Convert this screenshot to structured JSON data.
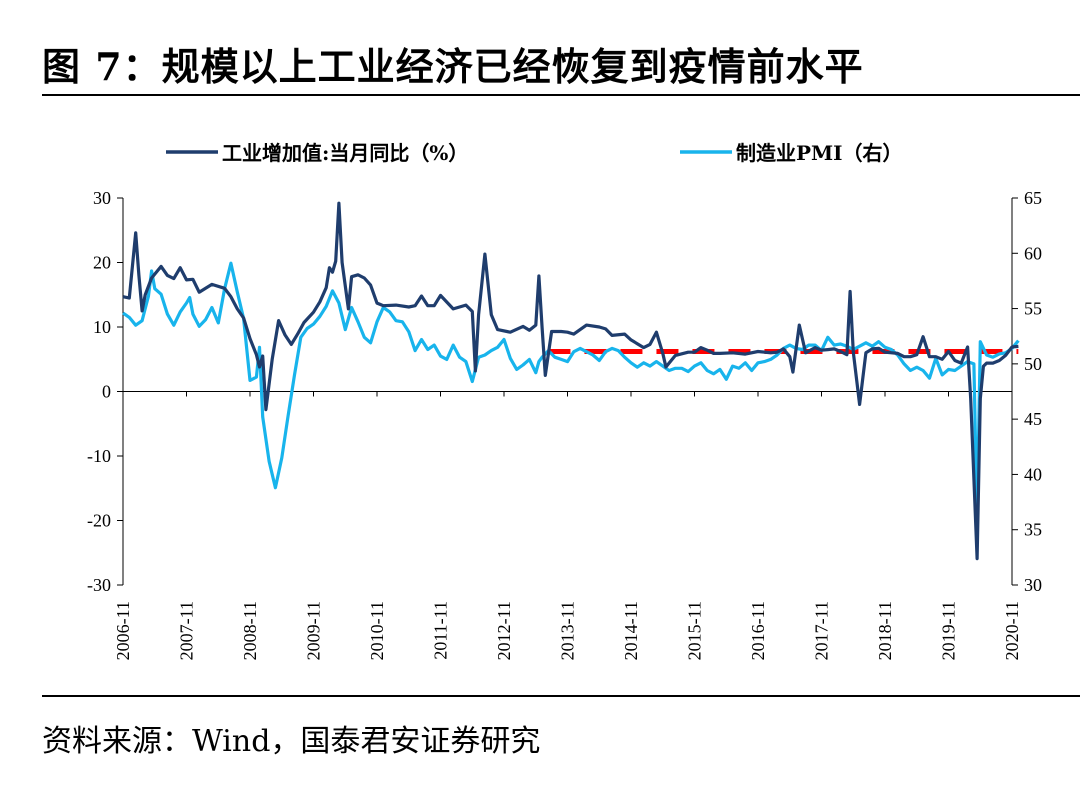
{
  "figure": {
    "title": "图 7：规模以上工业经济已经恢复到疫情前水平",
    "source": "资料来源：Wind，国泰君安证券研究"
  },
  "chart_data": {
    "type": "line",
    "x": [
      "2006-11",
      "2007-11",
      "2008-11",
      "2009-11",
      "2010-11",
      "2011-11",
      "2012-11",
      "2013-11",
      "2014-11",
      "2015-11",
      "2016-11",
      "2017-11",
      "2018-11",
      "2019-11",
      "2020-11"
    ],
    "x_start": "2006-11",
    "x_end": "2020-11",
    "left_axis": {
      "ylim": [
        -30,
        30
      ],
      "ticks": [
        -30,
        -20,
        -10,
        0,
        10,
        20,
        30
      ]
    },
    "right_axis": {
      "ylim": [
        30,
        65
      ],
      "ticks": [
        30,
        35,
        40,
        45,
        50,
        55,
        60,
        65
      ]
    },
    "series": [
      {
        "name": "工业增加值:当月同比（%）",
        "axis": "left",
        "color": "#1f3d6d",
        "points": [
          [
            0,
            14.7
          ],
          [
            0.1,
            14.5
          ],
          [
            0.2,
            24.6
          ],
          [
            0.25,
            18
          ],
          [
            0.3,
            12.5
          ],
          [
            0.35,
            15
          ],
          [
            0.45,
            17.6
          ],
          [
            0.6,
            19.4
          ],
          [
            0.7,
            18
          ],
          [
            0.8,
            17.5
          ],
          [
            0.9,
            19.2
          ],
          [
            1,
            17.3
          ],
          [
            1.1,
            17.4
          ],
          [
            1.2,
            15.4
          ],
          [
            1.3,
            16
          ],
          [
            1.4,
            16.6
          ],
          [
            1.6,
            16
          ],
          [
            1.7,
            14.7
          ],
          [
            1.8,
            12.8
          ],
          [
            1.9,
            11.4
          ],
          [
            2.0,
            8.2
          ],
          [
            2.1,
            5.7
          ],
          [
            2.15,
            3.8
          ],
          [
            2.2,
            5.5
          ],
          [
            2.25,
            -2.8
          ],
          [
            2.35,
            5
          ],
          [
            2.45,
            11
          ],
          [
            2.55,
            8.8
          ],
          [
            2.65,
            7.3
          ],
          [
            2.75,
            8.9
          ],
          [
            2.85,
            10.7
          ],
          [
            3.0,
            12.3
          ],
          [
            3.1,
            13.9
          ],
          [
            3.2,
            16.1
          ],
          [
            3.25,
            19.2
          ],
          [
            3.3,
            18.5
          ],
          [
            3.35,
            20.2
          ],
          [
            3.4,
            29.2
          ],
          [
            3.45,
            20
          ],
          [
            3.55,
            12.8
          ],
          [
            3.6,
            17.8
          ],
          [
            3.7,
            18.1
          ],
          [
            3.8,
            17.6
          ],
          [
            3.9,
            16.5
          ],
          [
            4.0,
            13.7
          ],
          [
            4.1,
            13.3
          ],
          [
            4.3,
            13.4
          ],
          [
            4.5,
            13.1
          ],
          [
            4.6,
            13.3
          ],
          [
            4.7,
            14.8
          ],
          [
            4.8,
            13.3
          ],
          [
            4.9,
            13.3
          ],
          [
            5.0,
            14.9
          ],
          [
            5.2,
            12.8
          ],
          [
            5.4,
            13.4
          ],
          [
            5.5,
            12.4
          ],
          [
            5.55,
            3.2
          ],
          [
            5.6,
            11.9
          ],
          [
            5.7,
            21.3
          ],
          [
            5.8,
            11.9
          ],
          [
            5.9,
            9.6
          ],
          [
            6.1,
            9.2
          ],
          [
            6.3,
            10.1
          ],
          [
            6.4,
            9.5
          ],
          [
            6.5,
            10.3
          ],
          [
            6.55,
            17.9
          ],
          [
            6.6,
            9.9
          ],
          [
            6.65,
            2.5
          ],
          [
            6.75,
            9.3
          ],
          [
            6.9,
            9.3
          ],
          [
            7.0,
            9.2
          ],
          [
            7.1,
            8.9
          ],
          [
            7.3,
            10.3
          ],
          [
            7.5,
            10.0
          ],
          [
            7.6,
            9.7
          ],
          [
            7.7,
            8.7
          ],
          [
            7.9,
            8.9
          ],
          [
            8.0,
            8.0
          ],
          [
            8.2,
            6.8
          ],
          [
            8.3,
            7.3
          ],
          [
            8.4,
            9.2
          ],
          [
            8.5,
            5.9
          ],
          [
            8.55,
            3.8
          ],
          [
            8.7,
            5.6
          ],
          [
            8.9,
            6.1
          ],
          [
            9.0,
            6.1
          ],
          [
            9.1,
            6.8
          ],
          [
            9.2,
            6.4
          ],
          [
            9.3,
            5.9
          ],
          [
            9.4,
            5.9
          ],
          [
            9.6,
            6.0
          ],
          [
            9.8,
            5.8
          ],
          [
            10.0,
            6.2
          ],
          [
            10.2,
            6.0
          ],
          [
            10.3,
            6.1
          ],
          [
            10.4,
            6.6
          ],
          [
            10.5,
            5.4
          ],
          [
            10.55,
            3.0
          ],
          [
            10.65,
            10.3
          ],
          [
            10.75,
            6.0
          ],
          [
            10.9,
            6.8
          ],
          [
            11.0,
            6.4
          ],
          [
            11.1,
            6.5
          ],
          [
            11.2,
            6.6
          ],
          [
            11.3,
            6.2
          ],
          [
            11.4,
            5.7
          ],
          [
            11.45,
            15.5
          ],
          [
            11.5,
            6.1
          ],
          [
            11.6,
            -2.0
          ],
          [
            11.7,
            6.0
          ],
          [
            11.8,
            6.6
          ],
          [
            11.9,
            6.7
          ],
          [
            12.0,
            6.1
          ],
          [
            12.2,
            5.9
          ],
          [
            12.3,
            5.4
          ],
          [
            12.4,
            5.4
          ],
          [
            12.5,
            5.7
          ],
          [
            12.6,
            8.5
          ],
          [
            12.7,
            5.4
          ],
          [
            12.8,
            5.4
          ],
          [
            12.9,
            5.0
          ],
          [
            13.0,
            6.2
          ],
          [
            13.1,
            4.8
          ],
          [
            13.2,
            4.4
          ],
          [
            13.3,
            6.9
          ],
          [
            13.35,
            -1.1
          ],
          [
            13.4,
            -13.5
          ],
          [
            13.45,
            -25.9
          ],
          [
            13.5,
            -1.1
          ],
          [
            13.55,
            3.9
          ],
          [
            13.6,
            4.4
          ],
          [
            13.7,
            4.4
          ],
          [
            13.8,
            4.8
          ],
          [
            13.9,
            5.6
          ],
          [
            14.0,
            6.9
          ],
          [
            14.1,
            7.0
          ]
        ]
      },
      {
        "name": "制造业PMI（右）",
        "axis": "right",
        "color": "#18b4ec",
        "points": [
          [
            0,
            54.6
          ],
          [
            0.1,
            54.2
          ],
          [
            0.2,
            53.5
          ],
          [
            0.3,
            53.9
          ],
          [
            0.35,
            55
          ],
          [
            0.4,
            56.1
          ],
          [
            0.45,
            58.4
          ],
          [
            0.5,
            56.8
          ],
          [
            0.6,
            56.3
          ],
          [
            0.7,
            54.5
          ],
          [
            0.8,
            53.5
          ],
          [
            0.9,
            54.7
          ],
          [
            1.0,
            55.5
          ],
          [
            1.05,
            56
          ],
          [
            1.1,
            54.5
          ],
          [
            1.2,
            53.4
          ],
          [
            1.3,
            54
          ],
          [
            1.4,
            55.1
          ],
          [
            1.5,
            53.7
          ],
          [
            1.6,
            56.8
          ],
          [
            1.7,
            59.1
          ],
          [
            1.8,
            56.5
          ],
          [
            1.9,
            54.1
          ],
          [
            2.0,
            48.5
          ],
          [
            2.1,
            48.8
          ],
          [
            2.15,
            51.5
          ],
          [
            2.2,
            45.2
          ],
          [
            2.3,
            41.2
          ],
          [
            2.4,
            38.8
          ],
          [
            2.5,
            41.5
          ],
          [
            2.6,
            45.3
          ],
          [
            2.7,
            49
          ],
          [
            2.8,
            52.4
          ],
          [
            2.9,
            53.2
          ],
          [
            3.0,
            53.6
          ],
          [
            3.1,
            54.3
          ],
          [
            3.2,
            55.2
          ],
          [
            3.3,
            56.6
          ],
          [
            3.4,
            55.5
          ],
          [
            3.5,
            53.1
          ],
          [
            3.6,
            55.1
          ],
          [
            3.7,
            53.8
          ],
          [
            3.8,
            52.4
          ],
          [
            3.9,
            51.9
          ],
          [
            4.0,
            53.8
          ],
          [
            4.1,
            55.1
          ],
          [
            4.2,
            54.7
          ],
          [
            4.3,
            53.9
          ],
          [
            4.4,
            53.8
          ],
          [
            4.5,
            52.9
          ],
          [
            4.6,
            51.2
          ],
          [
            4.7,
            52.2
          ],
          [
            4.8,
            51.3
          ],
          [
            4.9,
            51.7
          ],
          [
            5.0,
            50.7
          ],
          [
            5.1,
            50.4
          ],
          [
            5.2,
            51.7
          ],
          [
            5.3,
            50.6
          ],
          [
            5.4,
            50.2
          ],
          [
            5.5,
            48.4
          ],
          [
            5.6,
            50.6
          ],
          [
            5.7,
            50.8
          ],
          [
            5.8,
            51.2
          ],
          [
            5.9,
            51.5
          ],
          [
            6.0,
            52.2
          ],
          [
            6.1,
            50.5
          ],
          [
            6.2,
            49.5
          ],
          [
            6.3,
            49.9
          ],
          [
            6.4,
            50.4
          ],
          [
            6.5,
            49.2
          ],
          [
            6.55,
            50.2
          ],
          [
            6.6,
            50.6
          ],
          [
            6.7,
            51.2
          ],
          [
            6.8,
            50.6
          ],
          [
            6.9,
            50.4
          ],
          [
            7.0,
            50.2
          ],
          [
            7.1,
            51.1
          ],
          [
            7.2,
            51.4
          ],
          [
            7.3,
            51.1
          ],
          [
            7.4,
            50.8
          ],
          [
            7.5,
            50.3
          ],
          [
            7.6,
            51.1
          ],
          [
            7.7,
            51.4
          ],
          [
            7.8,
            51.2
          ],
          [
            7.9,
            50.6
          ],
          [
            8.0,
            50.1
          ],
          [
            8.1,
            49.7
          ],
          [
            8.2,
            50.1
          ],
          [
            8.3,
            49.8
          ],
          [
            8.4,
            50.2
          ],
          [
            8.5,
            49.8
          ],
          [
            8.6,
            49.4
          ],
          [
            8.7,
            49.6
          ],
          [
            8.8,
            49.6
          ],
          [
            8.9,
            49.3
          ],
          [
            9.0,
            49.8
          ],
          [
            9.1,
            50.1
          ],
          [
            9.2,
            49.4
          ],
          [
            9.3,
            49.1
          ],
          [
            9.4,
            49.5
          ],
          [
            9.5,
            48.6
          ],
          [
            9.6,
            49.8
          ],
          [
            9.7,
            49.6
          ],
          [
            9.8,
            50.1
          ],
          [
            9.9,
            49.4
          ],
          [
            10.0,
            50.1
          ],
          [
            10.1,
            50.2
          ],
          [
            10.2,
            50.4
          ],
          [
            10.3,
            50.8
          ],
          [
            10.4,
            51.4
          ],
          [
            10.5,
            51.7
          ],
          [
            10.6,
            51.4
          ],
          [
            10.7,
            51.3
          ],
          [
            10.8,
            51.7
          ],
          [
            10.9,
            51.7
          ],
          [
            11.0,
            51.2
          ],
          [
            11.1,
            52.4
          ],
          [
            11.2,
            51.7
          ],
          [
            11.3,
            51.8
          ],
          [
            11.4,
            51.6
          ],
          [
            11.5,
            51.3
          ],
          [
            11.6,
            51.6
          ],
          [
            11.7,
            51.9
          ],
          [
            11.8,
            51.6
          ],
          [
            11.9,
            52.0
          ],
          [
            12.0,
            51.5
          ],
          [
            12.1,
            51.3
          ],
          [
            12.2,
            50.8
          ],
          [
            12.3,
            50.0
          ],
          [
            12.4,
            49.4
          ],
          [
            12.5,
            49.7
          ],
          [
            12.6,
            49.4
          ],
          [
            12.7,
            48.7
          ],
          [
            12.8,
            50.5
          ],
          [
            12.9,
            49.0
          ],
          [
            13.0,
            49.5
          ],
          [
            13.1,
            49.4
          ],
          [
            13.2,
            49.8
          ],
          [
            13.3,
            50.2
          ],
          [
            13.4,
            50.0
          ],
          [
            13.45,
            35.7
          ],
          [
            13.5,
            52.0
          ],
          [
            13.6,
            50.8
          ],
          [
            13.7,
            50.6
          ],
          [
            13.8,
            50.9
          ],
          [
            13.9,
            51.0
          ],
          [
            14.0,
            51.4
          ],
          [
            14.1,
            52.1
          ]
        ]
      }
    ],
    "reference_line": {
      "axis": "left",
      "value": 6.2,
      "x_from": 6.7,
      "x_to": 14.1,
      "color": "#ff0000",
      "style": "dashed"
    },
    "legend": [
      "工业增加值:当月同比（%）",
      "制造业PMI（右）"
    ]
  }
}
